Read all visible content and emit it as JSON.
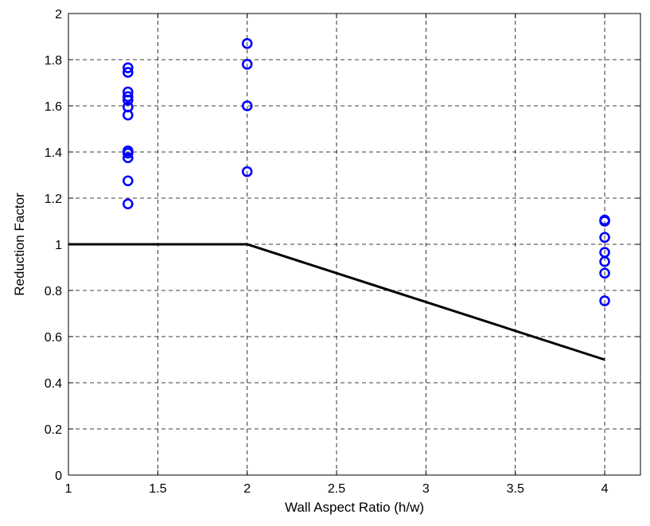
{
  "chart_data": {
    "type": "scatter",
    "title": "",
    "xlabel": "Wall Aspect Ratio (h/w)",
    "ylabel": "Reduction Factor",
    "xlim": [
      1,
      4.2
    ],
    "ylim": [
      0,
      2
    ],
    "xticks": [
      1,
      1.5,
      2,
      2.5,
      3,
      3.5,
      4
    ],
    "xtick_labels": [
      "1",
      "1.5",
      "2",
      "2.5",
      "3",
      "3.5",
      "4"
    ],
    "yticks": [
      0,
      0.2,
      0.4,
      0.6,
      0.8,
      1,
      1.2,
      1.4,
      1.6,
      1.8,
      2
    ],
    "ytick_labels": [
      "0",
      "0.2",
      "0.4",
      "0.6",
      "0.8",
      "1",
      "1.2",
      "1.4",
      "1.6",
      "1.8",
      "2"
    ],
    "grid": true,
    "grid_style": "dashed",
    "box": true,
    "series": [
      {
        "kind": "scatter",
        "marker": "circle-open",
        "color": "#0000ff",
        "points": [
          [
            1.333,
            1.765
          ],
          [
            1.333,
            1.745
          ],
          [
            1.333,
            1.66
          ],
          [
            1.333,
            1.64
          ],
          [
            1.333,
            1.625
          ],
          [
            1.333,
            1.595
          ],
          [
            1.333,
            1.56
          ],
          [
            1.333,
            1.405
          ],
          [
            1.333,
            1.395
          ],
          [
            1.333,
            1.375
          ],
          [
            1.333,
            1.275
          ],
          [
            1.333,
            1.175
          ],
          [
            2,
            1.87
          ],
          [
            2,
            1.78
          ],
          [
            2,
            1.6
          ],
          [
            2,
            1.315
          ],
          [
            4,
            1.105
          ],
          [
            4,
            1.1
          ],
          [
            4,
            1.03
          ],
          [
            4,
            0.965
          ],
          [
            4,
            0.925
          ],
          [
            4,
            0.875
          ],
          [
            4,
            0.755
          ]
        ]
      },
      {
        "kind": "line",
        "color": "#000000",
        "points": [
          [
            1,
            1
          ],
          [
            2,
            1
          ],
          [
            4,
            0.5
          ]
        ]
      }
    ]
  }
}
